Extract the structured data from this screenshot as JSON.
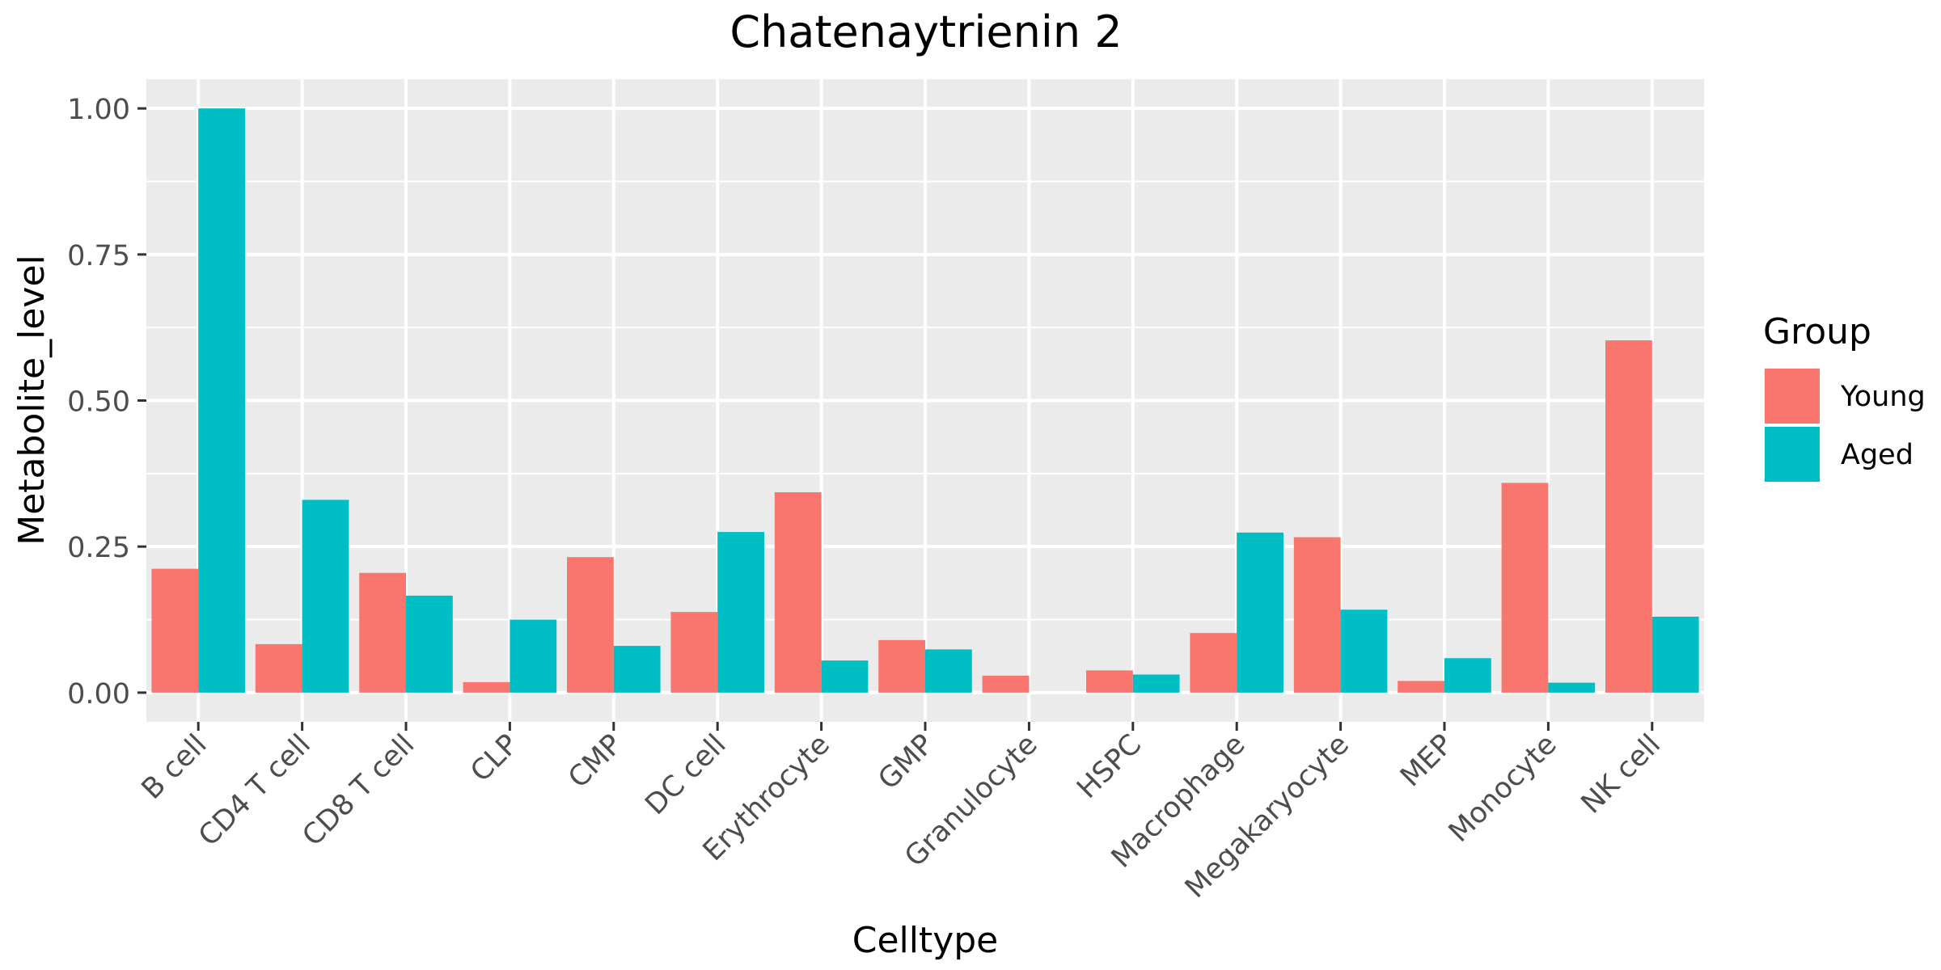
{
  "chart_data": {
    "type": "bar",
    "title": "Chatenaytrienin 2",
    "xlabel": "Celltype",
    "ylabel": "Metabolite_level",
    "categories": [
      "B cell",
      "CD4 T cell",
      "CD8 T cell",
      "CLP",
      "CMP",
      "DC cell",
      "Erythrocyte",
      "GMP",
      "Granulocyte",
      "HSPC",
      "Macrophage",
      "Megakaryocyte",
      "MEP",
      "Monocyte",
      "NK cell"
    ],
    "series": [
      {
        "name": "Young",
        "color": "#F8766D",
        "values": [
          0.212,
          0.083,
          0.205,
          0.018,
          0.232,
          0.138,
          0.343,
          0.09,
          0.029,
          0.038,
          0.102,
          0.266,
          0.02,
          0.359,
          0.603
        ]
      },
      {
        "name": "Aged",
        "color": "#00BFC4",
        "values": [
          1.0,
          0.33,
          0.166,
          0.125,
          0.08,
          0.275,
          0.055,
          0.074,
          0.0,
          0.031,
          0.274,
          0.142,
          0.059,
          0.017,
          0.13
        ]
      }
    ],
    "yticks": [
      0,
      0.25,
      0.5,
      0.75,
      1.0
    ],
    "ytick_labels": [
      "0.00",
      "0.25",
      "0.50",
      "0.75",
      "1.00"
    ],
    "ylim": [
      -0.05,
      1.05
    ],
    "grid": true,
    "legend": {
      "title": "Group",
      "position": "right"
    }
  }
}
